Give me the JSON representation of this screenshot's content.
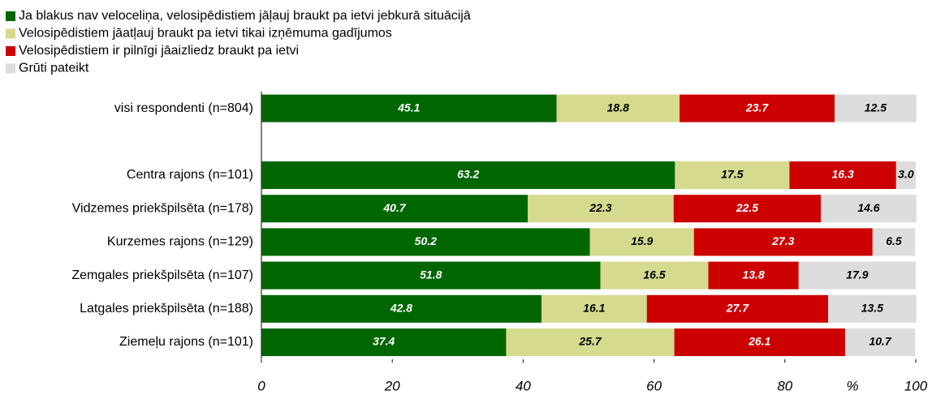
{
  "chart_data": {
    "type": "stacked-bar-horizontal",
    "categories": [
      "visi respondenti (n=804)",
      null,
      "Centra rajons (n=101)",
      "Vidzemes priekšpilsēta (n=178)",
      "Kurzemes rajons (n=129)",
      "Zemgales priekšpilsēta (n=107)",
      "Latgales priekšpilsēta (n=188)",
      "Ziemeļu rajons (n=101)"
    ],
    "series": [
      {
        "name": "Ja blakus nav veloceliņa, velosipēdistiem jāļauj braukt pa ietvi jebkurā situācijā",
        "color": "#006600",
        "values": [
          45.1,
          null,
          63.2,
          40.7,
          50.2,
          51.8,
          42.8,
          37.4
        ]
      },
      {
        "name": "Velosipēdistiem jāatļauj braukt pa ietvi tikai izņēmuma gadījumos",
        "color": "#d6da8e",
        "values": [
          18.8,
          null,
          17.5,
          22.3,
          15.9,
          16.5,
          16.1,
          25.7
        ]
      },
      {
        "name": "Velosipēdistiem ir pilnīgi jāaizliedz braukt pa ietvi",
        "color": "#cc0000",
        "values": [
          23.7,
          null,
          16.3,
          22.5,
          27.3,
          13.8,
          27.7,
          26.1
        ]
      },
      {
        "name": "Grūti pateikt",
        "color": "#dddddd",
        "values": [
          12.5,
          null,
          3,
          14.6,
          6.5,
          17.9,
          13.5,
          10.7
        ],
        "value_labels": [
          "12.5",
          null,
          "3.0",
          "14.6",
          "6.5",
          "17.9",
          "13.5",
          "10.7"
        ]
      }
    ],
    "xlabel": "%",
    "xlim": [
      0,
      100
    ],
    "xticks": [
      0,
      20,
      40,
      60,
      80,
      100
    ],
    "legend": "top-left"
  }
}
